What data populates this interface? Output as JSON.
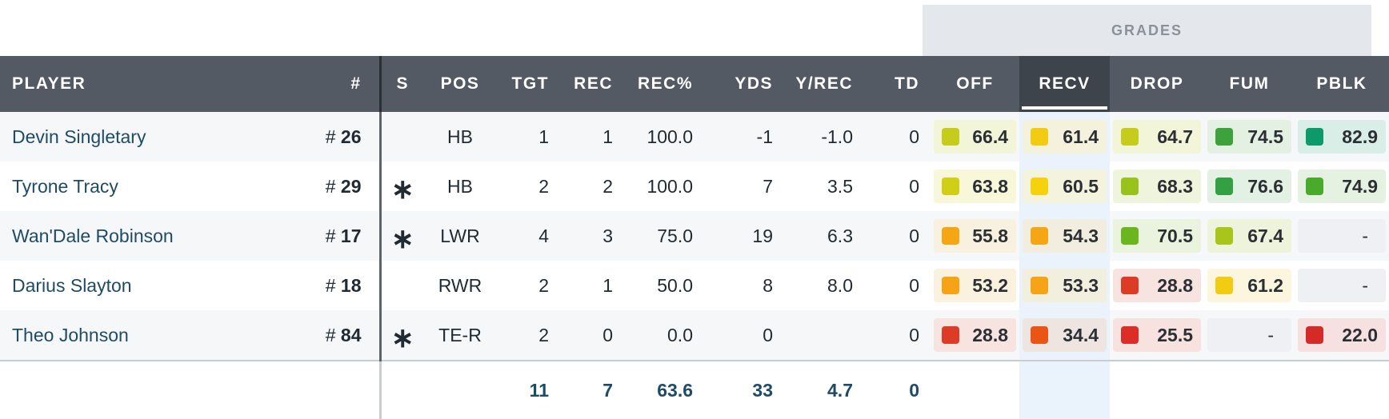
{
  "band_label": "GRADES",
  "headers": {
    "player": "PLAYER",
    "num": "#",
    "s": "S",
    "pos": "POS",
    "tgt": "TGT",
    "rec": "REC",
    "rec_pct": "REC%",
    "yds": "YDS",
    "y_rec": "Y/REC",
    "td": "TD",
    "off": "OFF",
    "recv": "RECV",
    "drop": "DROP",
    "fum": "FUM",
    "pblk": "PBLK"
  },
  "active_grade_column": "RECV",
  "number_prefix": "#",
  "rows": [
    {
      "player": "Devin Singletary",
      "num": "26",
      "s": "",
      "pos": "HB",
      "tgt": "1",
      "rec": "1",
      "rec_pct": "100.0",
      "yds": "-1",
      "y_rec": "-1.0",
      "td": "0",
      "grades": [
        {
          "v": "66.4",
          "c": "#c6cc1c",
          "bg": "#f3f5d9"
        },
        {
          "v": "61.4",
          "c": "#f2cc12",
          "bg": "#f4f2dc"
        },
        {
          "v": "64.7",
          "c": "#c6cc1c",
          "bg": "#f3f5d9"
        },
        {
          "v": "74.5",
          "c": "#3ea23a",
          "bg": "#e4f1e2"
        },
        {
          "v": "82.9",
          "c": "#0c9a6a",
          "bg": "#d9eee6"
        }
      ]
    },
    {
      "player": "Tyrone Tracy",
      "num": "29",
      "s": "∗",
      "pos": "HB",
      "tgt": "2",
      "rec": "2",
      "rec_pct": "100.0",
      "yds": "7",
      "y_rec": "3.5",
      "td": "0",
      "grades": [
        {
          "v": "63.8",
          "c": "#d1cf15",
          "bg": "#f8f7da"
        },
        {
          "v": "60.5",
          "c": "#f6d20e",
          "bg": "#f4f3dd"
        },
        {
          "v": "68.3",
          "c": "#99c21c",
          "bg": "#eef5dc"
        },
        {
          "v": "76.6",
          "c": "#33a042",
          "bg": "#e3f1e4"
        },
        {
          "v": "74.9",
          "c": "#4aaa2b",
          "bg": "#e6f2e1"
        }
      ]
    },
    {
      "player": "Wan'Dale Robinson",
      "num": "17",
      "s": "∗",
      "pos": "LWR",
      "tgt": "4",
      "rec": "3",
      "rec_pct": "75.0",
      "yds": "19",
      "y_rec": "6.3",
      "td": "0",
      "grades": [
        {
          "v": "55.8",
          "c": "#f5a614",
          "bg": "#f8f1df"
        },
        {
          "v": "54.3",
          "c": "#f5a614",
          "bg": "#f1eedf"
        },
        {
          "v": "70.5",
          "c": "#6bb61e",
          "bg": "#e9f3de"
        },
        {
          "v": "67.4",
          "c": "#a9c41a",
          "bg": "#eef3db"
        },
        {
          "v": "-",
          "c": "",
          "bg": "#eef0f3"
        }
      ]
    },
    {
      "player": "Darius Slayton",
      "num": "18",
      "s": "",
      "pos": "RWR",
      "tgt": "2",
      "rec": "1",
      "rec_pct": "50.0",
      "yds": "8",
      "y_rec": "8.0",
      "td": "0",
      "grades": [
        {
          "v": "53.2",
          "c": "#f6a416",
          "bg": "#faf1de"
        },
        {
          "v": "53.3",
          "c": "#f6a416",
          "bg": "#f2efdf"
        },
        {
          "v": "28.8",
          "c": "#dc3b25",
          "bg": "#f7e3e0"
        },
        {
          "v": "61.2",
          "c": "#f2cc12",
          "bg": "#fbf6dd"
        },
        {
          "v": "-",
          "c": "",
          "bg": "#eef0f3"
        }
      ]
    },
    {
      "player": "Theo Johnson",
      "num": "84",
      "s": "∗",
      "pos": "TE-R",
      "tgt": "2",
      "rec": "0",
      "rec_pct": "0.0",
      "yds": "0",
      "y_rec": "",
      "td": "0",
      "grades": [
        {
          "v": "28.8",
          "c": "#dc3b25",
          "bg": "#f7e3e0"
        },
        {
          "v": "34.4",
          "c": "#ea5516",
          "bg": "#efe5e0"
        },
        {
          "v": "25.5",
          "c": "#dc2e26",
          "bg": "#f7e2e0"
        },
        {
          "v": "-",
          "c": "",
          "bg": "#eef0f3"
        },
        {
          "v": "22.0",
          "c": "#d42a28",
          "bg": "#f7e1e0"
        }
      ]
    }
  ],
  "totals": {
    "tgt": "11",
    "rec": "7",
    "rec_pct": "63.6",
    "yds": "33",
    "y_rec": "4.7",
    "td": "0"
  }
}
